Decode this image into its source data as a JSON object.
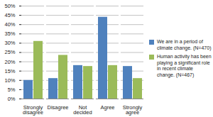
{
  "chart_data": {
    "type": "bar",
    "categories": [
      "Strongly disagree",
      "Disagree",
      "Not decided",
      "Agree",
      "Strongly agree"
    ],
    "series": [
      {
        "name": "We are in a period of climate change. (N=470)",
        "color": "#4f81bd",
        "values": [
          10,
          11,
          18,
          44,
          17.5
        ]
      },
      {
        "name": "Human activity has been playing a significant role in recent climate change. (N=467)",
        "color": "#9bbb59",
        "values": [
          31,
          23.5,
          17.5,
          18,
          11
        ]
      }
    ],
    "ylim": [
      0,
      50
    ],
    "yticks": [
      {
        "value": 0,
        "label": "0%"
      },
      {
        "value": 5,
        "label": "5%"
      },
      {
        "value": 10,
        "label": "10%"
      },
      {
        "value": 15,
        "label": "15%"
      },
      {
        "value": 20,
        "label": "20%"
      },
      {
        "value": 25,
        "label": "25%"
      },
      {
        "value": 30,
        "label": "30%"
      },
      {
        "value": 35,
        "label": "35%"
      },
      {
        "value": 40,
        "label": "40%"
      },
      {
        "value": 45,
        "label": "45%"
      },
      {
        "value": 50,
        "label": "50%"
      }
    ],
    "grid": true,
    "legend": "right"
  }
}
